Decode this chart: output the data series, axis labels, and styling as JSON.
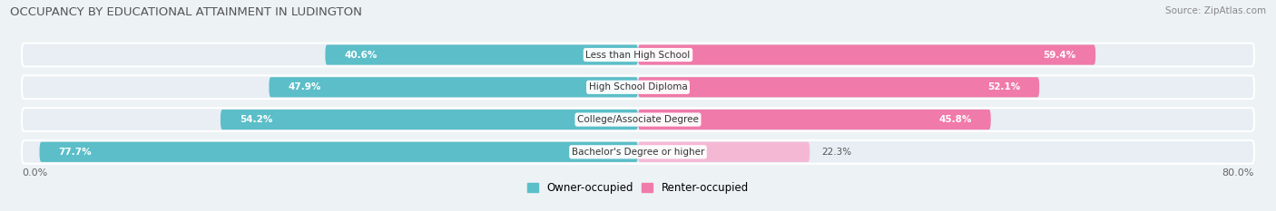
{
  "title": "OCCUPANCY BY EDUCATIONAL ATTAINMENT IN LUDINGTON",
  "source": "Source: ZipAtlas.com",
  "categories": [
    "Less than High School",
    "High School Diploma",
    "College/Associate Degree",
    "Bachelor's Degree or higher"
  ],
  "owner_values": [
    40.6,
    47.9,
    54.2,
    77.7
  ],
  "renter_values": [
    59.4,
    52.1,
    45.8,
    22.3
  ],
  "owner_color": "#5bbec8",
  "renter_color": "#f07aaa",
  "renter_color_light": "#f5b8d4",
  "bg_color": "#edf2f5",
  "bar_bg_color": "#dde6ed",
  "row_bg_color": "#e8eef3",
  "title_color": "#555555",
  "label_color": "#666666",
  "axis_label_left": "0.0%",
  "axis_label_right": "80.0%",
  "legend_owner": "Owner-occupied",
  "legend_renter": "Renter-occupied",
  "total_width": 80.0
}
